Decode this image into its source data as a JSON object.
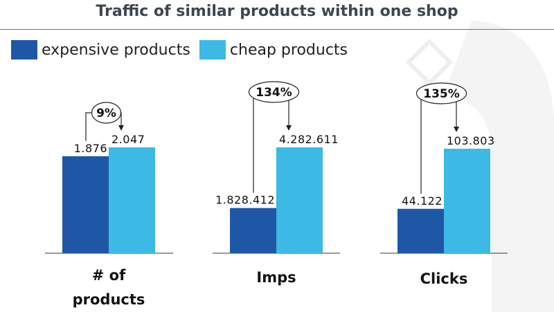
{
  "title": "Traffic of similar products within one shop",
  "colors": {
    "expensive": "#1f57a7",
    "cheap": "#3cb9e4",
    "rule": "#4a7f9a"
  },
  "chart_data": {
    "type": "bar",
    "title": "Traffic of similar products within one shop",
    "legend": "top-left",
    "series": [
      {
        "name": "expensive products",
        "color": "#1f57a7"
      },
      {
        "name": "cheap products",
        "color": "#3cb9e4"
      }
    ],
    "groups": [
      {
        "label": [
          "# of",
          "products"
        ],
        "values": [
          1876,
          2047
        ],
        "value_labels": [
          "1.876",
          "2.047"
        ],
        "change": "9%"
      },
      {
        "label": [
          "Imps"
        ],
        "values": [
          1828412,
          4282611
        ],
        "value_labels": [
          "1.828.412",
          "4.282.611"
        ],
        "change": "134%"
      },
      {
        "label": [
          "Clicks"
        ],
        "values": [
          44122,
          103803
        ],
        "value_labels": [
          "44.122",
          "103.803"
        ],
        "change": "135%"
      }
    ]
  }
}
